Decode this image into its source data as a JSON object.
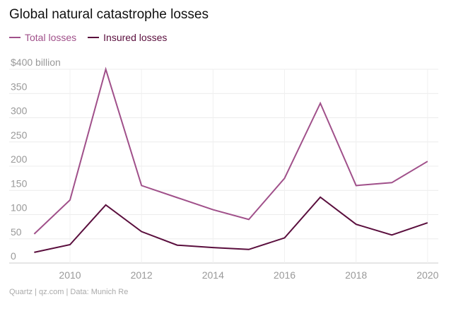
{
  "chart_data": {
    "type": "line",
    "title": "Global natural catastrophe losses",
    "x": [
      2009,
      2010,
      2011,
      2012,
      2013,
      2014,
      2015,
      2016,
      2017,
      2018,
      2019,
      2020
    ],
    "series": [
      {
        "name": "Total losses",
        "color": "#a0508a",
        "values": [
          60,
          130,
          400,
          160,
          135,
          110,
          90,
          175,
          330,
          160,
          166,
          210
        ]
      },
      {
        "name": "Insured losses",
        "color": "#5a0e3d",
        "values": [
          22,
          38,
          120,
          65,
          37,
          32,
          28,
          52,
          136,
          80,
          58,
          83
        ]
      }
    ],
    "ylim": [
      0,
      400
    ],
    "xlim": [
      2008.3,
      2020.3
    ],
    "yticks": [
      "0",
      "50",
      "100",
      "150",
      "200",
      "250",
      "300",
      "350",
      "$400 billion"
    ],
    "ytick_values": [
      0,
      50,
      100,
      150,
      200,
      250,
      300,
      350,
      400
    ],
    "xticks": [
      2010,
      2012,
      2014,
      2016,
      2018,
      2020
    ],
    "grid": true,
    "legend_position": "top-left"
  },
  "footer": "Quartz | qz.com | Data: Munich Re"
}
